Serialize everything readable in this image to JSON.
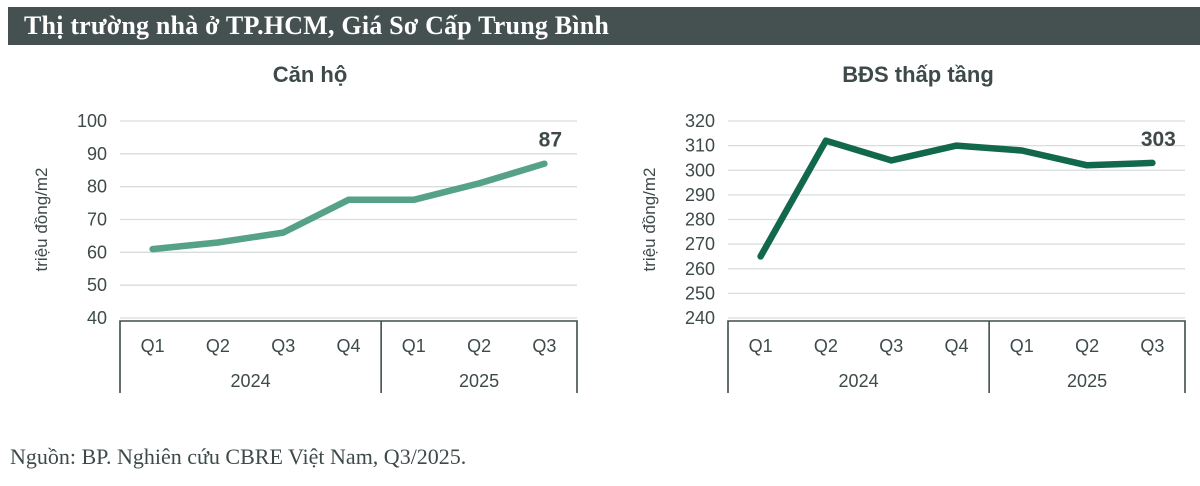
{
  "header": {
    "title": "Thị trường nhà ở TP.HCM, Giá Sơ Cấp Trung Bình",
    "bg_color": "#455150",
    "text_color": "#ffffff"
  },
  "source": {
    "text": "Nguồn: BP. Nghiên cứu CBRE Việt Nam, Q3/2025."
  },
  "colors": {
    "chart_text": "#3e4a4a",
    "gridline": "#d9dddd",
    "axis_box": "#414d4d"
  },
  "chart_data": [
    {
      "type": "line",
      "title": "Căn hộ",
      "ylabel": "triệu đồng/m2",
      "categories": [
        "Q1",
        "Q2",
        "Q3",
        "Q4",
        "Q1",
        "Q2",
        "Q3"
      ],
      "year_groups": [
        {
          "label": "2024",
          "span": 4
        },
        {
          "label": "2025",
          "span": 3
        }
      ],
      "values": [
        61,
        63,
        66,
        76,
        76,
        81,
        87
      ],
      "end_label": "87",
      "ylim": [
        40,
        100
      ],
      "yticks": [
        100,
        90,
        80,
        70,
        60,
        50,
        40
      ],
      "grid": true,
      "legend": "none",
      "line_color": "#55a287"
    },
    {
      "type": "line",
      "title": "BĐS thấp tầng",
      "ylabel": "triệu đồng/m2",
      "categories": [
        "Q1",
        "Q2",
        "Q3",
        "Q4",
        "Q1",
        "Q2",
        "Q3"
      ],
      "year_groups": [
        {
          "label": "2024",
          "span": 4
        },
        {
          "label": "2025",
          "span": 3
        }
      ],
      "values": [
        265,
        312,
        304,
        310,
        308,
        302,
        303
      ],
      "end_label": "303",
      "ylim": [
        240,
        320
      ],
      "yticks": [
        320,
        310,
        300,
        290,
        280,
        270,
        260,
        250,
        240
      ],
      "grid": true,
      "legend": "none",
      "line_color": "#11684c"
    }
  ]
}
